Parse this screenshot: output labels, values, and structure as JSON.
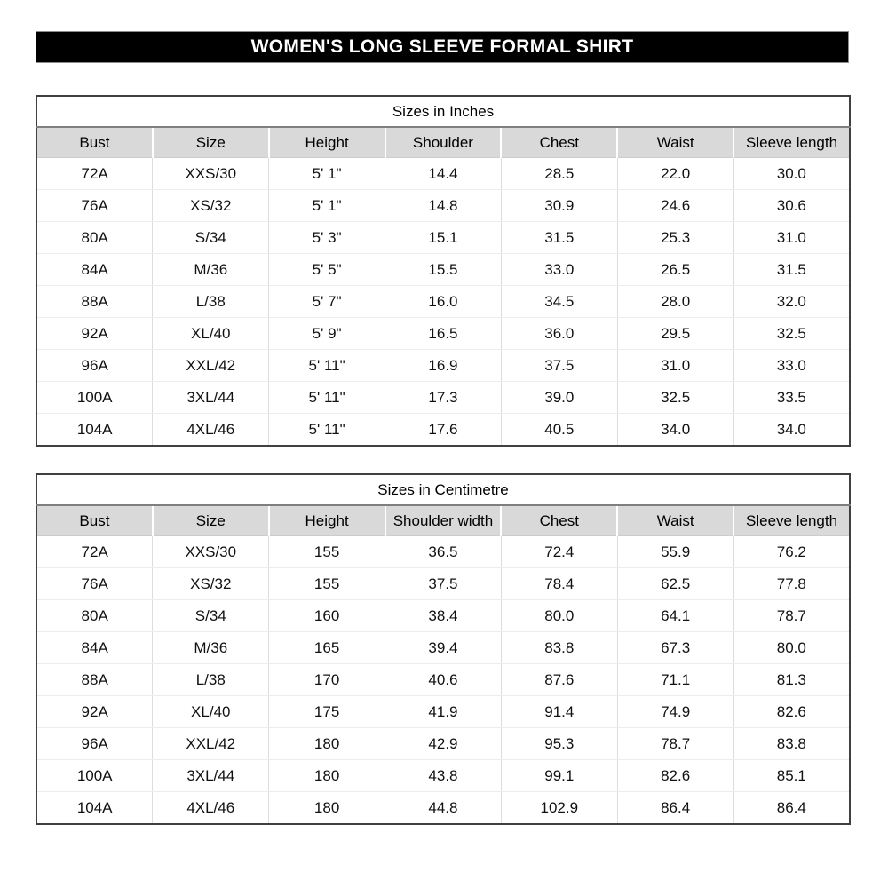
{
  "title": "WOMEN'S LONG SLEEVE FORMAL SHIRT",
  "colors": {
    "banner_bg": "#000000",
    "banner_text": "#ffffff",
    "header_row_bg": "#d9d9d9",
    "table_border": "#404040"
  },
  "tables": [
    {
      "title": "Sizes in Inches",
      "headers": [
        "Bust",
        "Size",
        "Height",
        "Shoulder",
        "Chest",
        "Waist",
        "Sleeve length"
      ],
      "rows": [
        [
          "72A",
          "XXS/30",
          "5' 1\"",
          "14.4",
          "28.5",
          "22.0",
          "30.0"
        ],
        [
          "76A",
          "XS/32",
          "5' 1\"",
          "14.8",
          "30.9",
          "24.6",
          "30.6"
        ],
        [
          "80A",
          "S/34",
          "5' 3\"",
          "15.1",
          "31.5",
          "25.3",
          "31.0"
        ],
        [
          "84A",
          "M/36",
          "5' 5\"",
          "15.5",
          "33.0",
          "26.5",
          "31.5"
        ],
        [
          "88A",
          "L/38",
          "5' 7\"",
          "16.0",
          "34.5",
          "28.0",
          "32.0"
        ],
        [
          "92A",
          "XL/40",
          "5' 9\"",
          "16.5",
          "36.0",
          "29.5",
          "32.5"
        ],
        [
          "96A",
          "XXL/42",
          "5' 11\"",
          "16.9",
          "37.5",
          "31.0",
          "33.0"
        ],
        [
          "100A",
          "3XL/44",
          "5' 11\"",
          "17.3",
          "39.0",
          "32.5",
          "33.5"
        ],
        [
          "104A",
          "4XL/46",
          "5' 11\"",
          "17.6",
          "40.5",
          "34.0",
          "34.0"
        ]
      ]
    },
    {
      "title": "Sizes in Centimetre",
      "headers": [
        "Bust",
        "Size",
        "Height",
        "Shoulder width",
        "Chest",
        "Waist",
        "Sleeve length"
      ],
      "rows": [
        [
          "72A",
          "XXS/30",
          "155",
          "36.5",
          "72.4",
          "55.9",
          "76.2"
        ],
        [
          "76A",
          "XS/32",
          "155",
          "37.5",
          "78.4",
          "62.5",
          "77.8"
        ],
        [
          "80A",
          "S/34",
          "160",
          "38.4",
          "80.0",
          "64.1",
          "78.7"
        ],
        [
          "84A",
          "M/36",
          "165",
          "39.4",
          "83.8",
          "67.3",
          "80.0"
        ],
        [
          "88A",
          "L/38",
          "170",
          "40.6",
          "87.6",
          "71.1",
          "81.3"
        ],
        [
          "92A",
          "XL/40",
          "175",
          "41.9",
          "91.4",
          "74.9",
          "82.6"
        ],
        [
          "96A",
          "XXL/42",
          "180",
          "42.9",
          "95.3",
          "78.7",
          "83.8"
        ],
        [
          "100A",
          "3XL/44",
          "180",
          "43.8",
          "99.1",
          "82.6",
          "85.1"
        ],
        [
          "104A",
          "4XL/46",
          "180",
          "44.8",
          "102.9",
          "86.4",
          "86.4"
        ]
      ]
    }
  ]
}
